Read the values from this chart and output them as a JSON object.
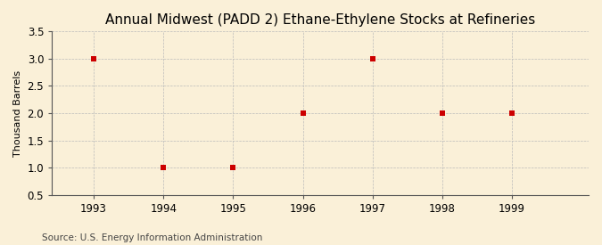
{
  "title": "Annual Midwest (PADD 2) Ethane-Ethylene Stocks at Refineries",
  "ylabel": "Thousand Barrels",
  "source": "Source: U.S. Energy Information Administration",
  "x_values": [
    1993,
    1994,
    1995,
    1996,
    1997,
    1998,
    1999
  ],
  "y_values": [
    3.0,
    1.0,
    1.0,
    2.0,
    3.0,
    2.0,
    2.0
  ],
  "xlim": [
    1992.4,
    2000.1
  ],
  "ylim": [
    0.5,
    3.5
  ],
  "yticks": [
    0.5,
    1.0,
    1.5,
    2.0,
    2.5,
    3.0,
    3.5
  ],
  "xticks": [
    1993,
    1994,
    1995,
    1996,
    1997,
    1998,
    1999
  ],
  "marker_color": "#cc0000",
  "marker": "s",
  "marker_size": 4,
  "background_color": "#faf0d8",
  "grid_color": "#bbbbbb",
  "title_fontsize": 11,
  "label_fontsize": 8,
  "tick_fontsize": 8.5,
  "source_fontsize": 7.5
}
